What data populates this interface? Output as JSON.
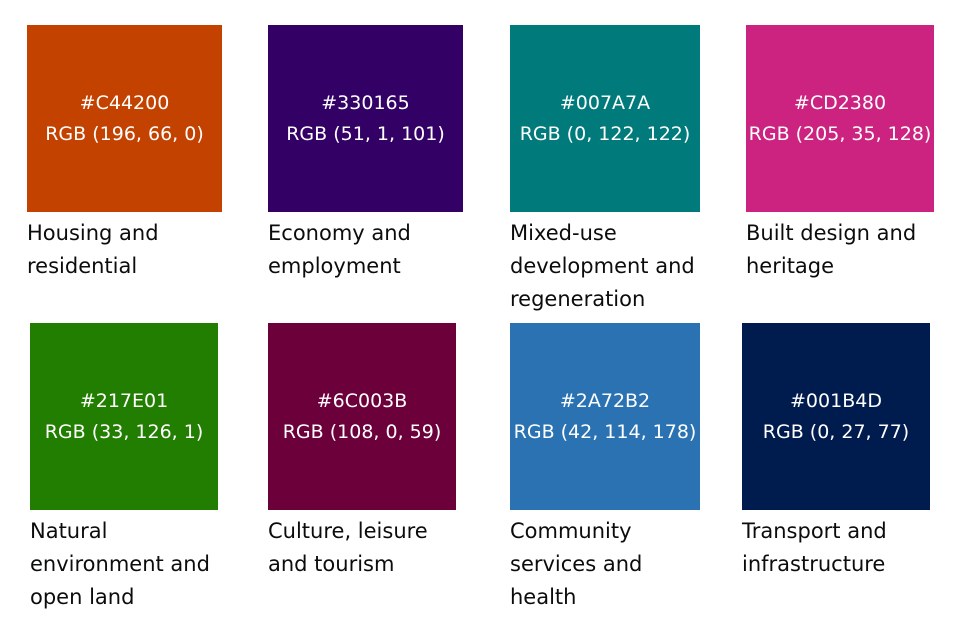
{
  "swatches": [
    {
      "hex": "#C44200",
      "rgb": "RGB (196, 66, 0)",
      "color": "#C44200",
      "label_lines": [
        "Housing and",
        "residential"
      ]
    },
    {
      "hex": "#330165",
      "rgb": "RGB (51, 1, 101)",
      "color": "#330165",
      "label_lines": [
        "Economy and",
        "employment"
      ]
    },
    {
      "hex": "#007A7A",
      "rgb": "RGB (0, 122, 122)",
      "color": "#007A7A",
      "label_lines": [
        "Mixed-use",
        "development and",
        "regeneration"
      ]
    },
    {
      "hex": "#CD2380",
      "rgb": "RGB (205, 35, 128)",
      "color": "#CD2380",
      "label_lines": [
        "Built design and",
        "heritage"
      ]
    },
    {
      "hex": "#217E01",
      "rgb": "RGB (33, 126, 1)",
      "color": "#217E01",
      "label_lines": [
        "Natural",
        "environment and",
        "open land"
      ]
    },
    {
      "hex": "#6C003B",
      "rgb": "RGB (108, 0, 59)",
      "color": "#6C003B",
      "label_lines": [
        "Culture, leisure",
        "and tourism"
      ]
    },
    {
      "hex": "#2A72B2",
      "rgb": "RGB (42, 114, 178)",
      "color": "#2A72B2",
      "label_lines": [
        "Community",
        "services and",
        "health"
      ]
    },
    {
      "hex": "#001B4D",
      "rgb": "RGB (0, 27, 77)",
      "color": "#001B4D",
      "label_lines": [
        "Transport and",
        "infrastructure"
      ]
    }
  ]
}
